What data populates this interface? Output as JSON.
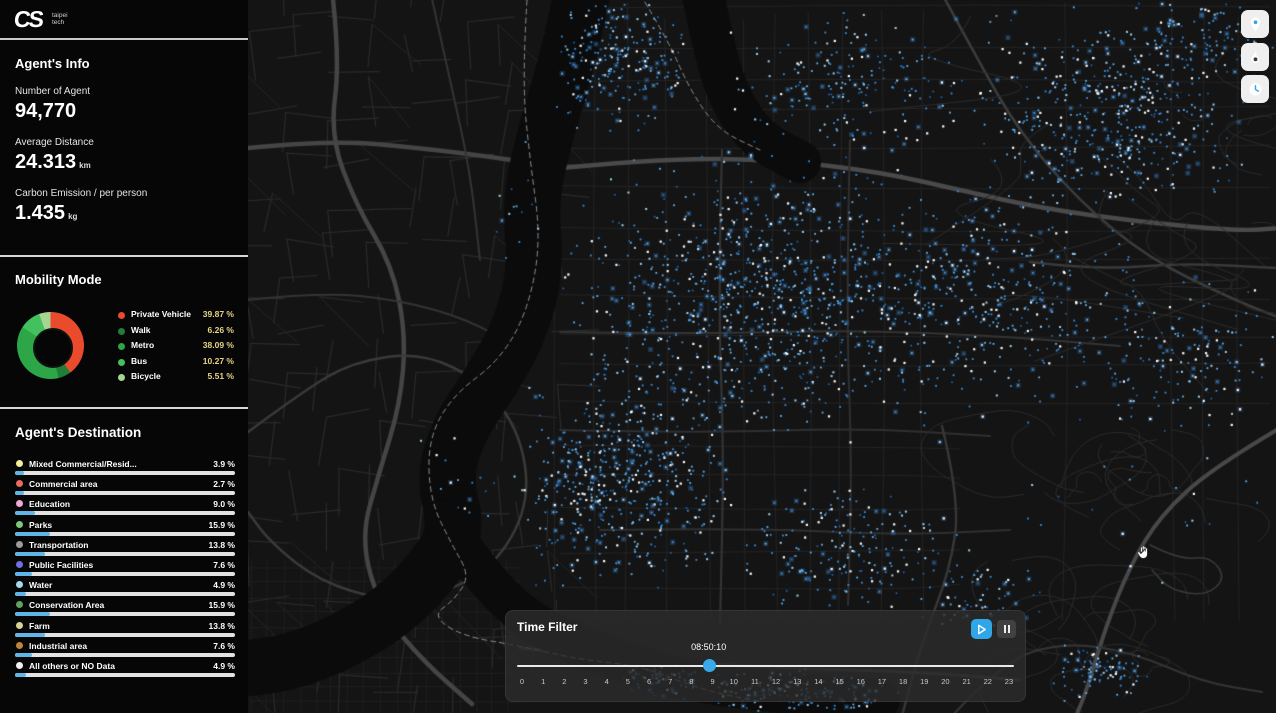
{
  "logo": {
    "monogram": "CS",
    "line1": "taipei",
    "line2": "tech"
  },
  "agents_info": {
    "title": "Agent's Info",
    "stats": [
      {
        "label": "Number of Agent",
        "value": "94,770",
        "unit": ""
      },
      {
        "label": "Average Distance",
        "value": "24.313",
        "unit": "km"
      },
      {
        "label": "Carbon Emission / per person",
        "value": "1.435",
        "unit": "kg"
      }
    ]
  },
  "chart_data": [
    {
      "type": "pie",
      "subtype": "donut",
      "title": "Mobility Mode",
      "labels": [
        "Private Vehicle",
        "Walk",
        "Metro",
        "Bus",
        "Bicycle"
      ],
      "values": [
        39.87,
        6.26,
        38.09,
        10.27,
        5.51
      ],
      "value_labels": [
        "39.87 %",
        "6.26 %",
        "38.09 %",
        "10.27 %",
        "5.51 %"
      ],
      "colors": [
        "#ea4b2c",
        "#1f7f39",
        "#2ca647",
        "#43c15e",
        "#a7d491"
      ],
      "legend_position": "right",
      "start_angle_deg": 0,
      "direction": "clockwise"
    },
    {
      "type": "bar",
      "orientation": "horizontal",
      "title": "Agent's Destination",
      "categories": [
        "Mixed Commercial/Resid...",
        "Commercial area",
        "Education",
        "Parks",
        "Transportation",
        "Public Facilities",
        "Water",
        "Conservation Area",
        "Farm",
        "Industrial area",
        "All others or NO Data"
      ],
      "values": [
        3.9,
        2.7,
        9.0,
        15.9,
        13.8,
        7.6,
        4.9,
        15.9,
        13.8,
        7.6,
        4.9
      ],
      "value_labels": [
        "3.9 %",
        "2.7 %",
        "9.0 %",
        "15.9 %",
        "13.8 %",
        "7.6 %",
        "4.9 %",
        "15.9 %",
        "13.8 %",
        "7.6 %",
        "4.9 %"
      ],
      "dot_colors": [
        "#f2ef9a",
        "#e96a5f",
        "#efa9d4",
        "#7dc87d",
        "#9b9b9b",
        "#6f6fe0",
        "#a6d8f2",
        "#5ea25e",
        "#d6d490",
        "#c08438",
        "#f2f2f2"
      ],
      "bar_fill": "#5fb4e8",
      "bar_track": "#e2e2e2",
      "xlim": [
        0,
        100
      ]
    }
  ],
  "mobility": {
    "title": "Mobility Mode"
  },
  "destination": {
    "title": "Agent's Destination"
  },
  "time_filter": {
    "title": "Time Filter",
    "current_time": "08:50:10",
    "current_hours": 8.836,
    "hours_max": 23,
    "ticks": [
      "0",
      "1",
      "2",
      "3",
      "4",
      "5",
      "6",
      "7",
      "8",
      "9",
      "10",
      "11",
      "12",
      "13",
      "14",
      "15",
      "16",
      "17",
      "18",
      "19",
      "20",
      "21",
      "22",
      "23"
    ],
    "play_icon": "play-icon",
    "pause_icon": "pause-icon"
  },
  "map_controls": {
    "buttons": [
      {
        "name": "location-pin",
        "icon": "pin-icon",
        "bg": "#2fa7e6"
      },
      {
        "name": "heatmap-flame",
        "icon": "flame-icon",
        "bg": "#3a3a3a"
      },
      {
        "name": "time-clock",
        "icon": "clock-icon",
        "bg": "#2fa7e6"
      }
    ]
  },
  "map": {
    "colors": {
      "background": "#141414",
      "road_minor": "#2b2b2b",
      "road_major": "#474747",
      "river": "#0b0b0b",
      "boundary_dash": "#8f8f8f",
      "contour": "#2b2b2b",
      "agent_blues": [
        "#1e6fc0",
        "#3b8fe0",
        "#63b4f2",
        "#9fd4f8"
      ],
      "agent_white": "#ffffff",
      "accent_blue": "#2fa7e6"
    }
  }
}
